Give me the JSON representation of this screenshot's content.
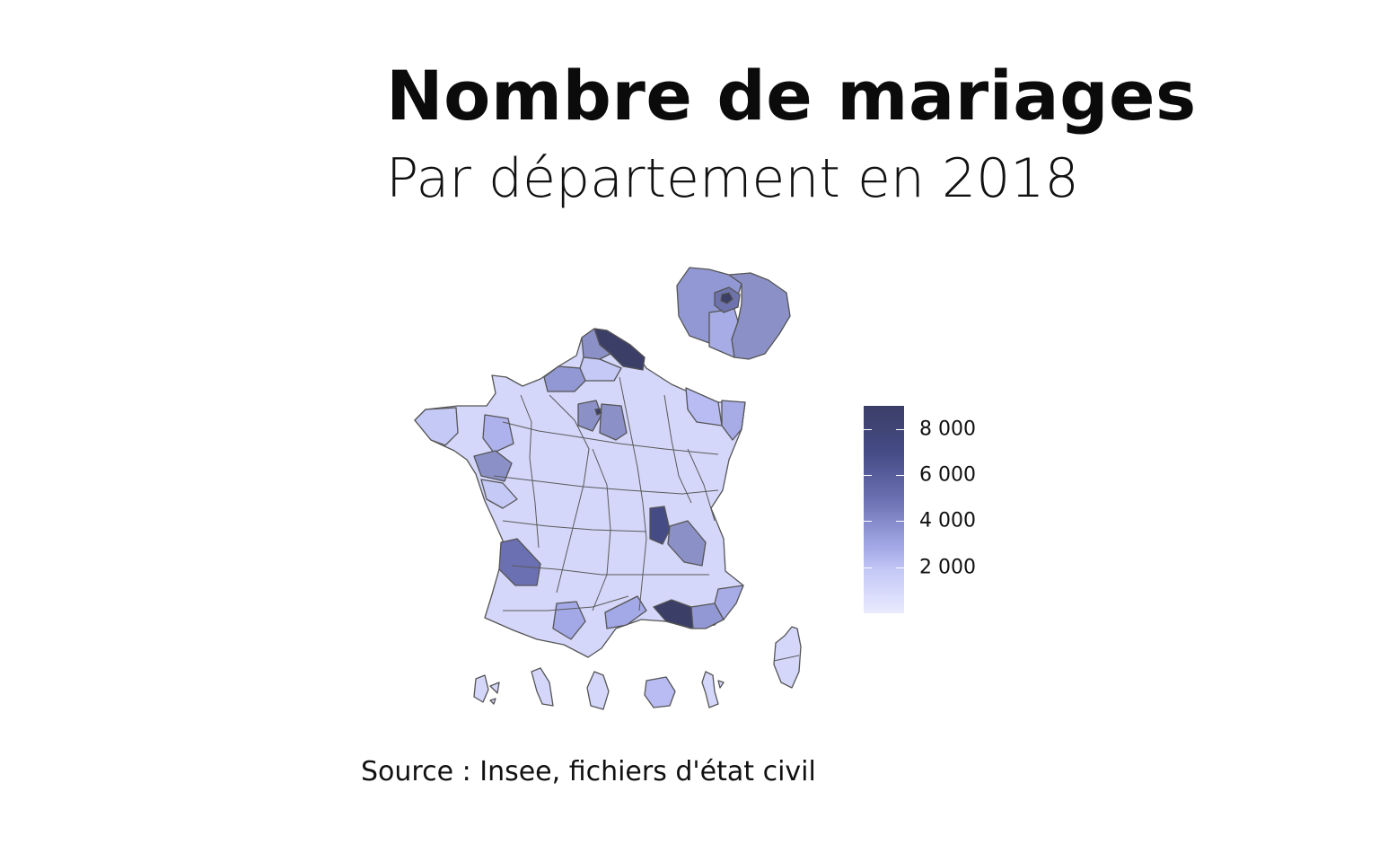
{
  "title": "Nombre de mariages",
  "subtitle": "Par département en 2018",
  "source": "Source : Insee, fichiers d'état civil",
  "legend": {
    "ticks": [
      {
        "value": 8000,
        "label": "8 000"
      },
      {
        "value": 6000,
        "label": "6 000"
      },
      {
        "value": 4000,
        "label": "4 000"
      },
      {
        "value": 2000,
        "label": "2 000"
      }
    ],
    "range": [
      0,
      9000
    ],
    "colors": {
      "low": "#e9ebff",
      "mid": "#a3a8e6",
      "high": "#3b3e67"
    }
  },
  "map": {
    "regions": [
      {
        "name": "nord",
        "value": 8800
      },
      {
        "name": "pas-de-calais",
        "value": 4200
      },
      {
        "name": "somme",
        "value": 1800
      },
      {
        "name": "seine-maritime",
        "value": 3900
      },
      {
        "name": "paris",
        "value": 9000
      },
      {
        "name": "seine-et-marne",
        "value": 4300
      },
      {
        "name": "yvelines",
        "value": 4300
      },
      {
        "name": "gironde",
        "value": 5600
      },
      {
        "name": "rhone",
        "value": 6700
      },
      {
        "name": "isere",
        "value": 4000
      },
      {
        "name": "bouches-du-rhone",
        "value": 7900
      },
      {
        "name": "herault",
        "value": 3400
      },
      {
        "name": "haute-garonne",
        "value": 3600
      },
      {
        "name": "loire-atlantique",
        "value": 4000
      },
      {
        "name": "bas-rhin",
        "value": 3600
      },
      {
        "name": "alpes-maritimes",
        "value": 3600
      },
      {
        "name": "var",
        "value": 3600
      },
      {
        "name": "reunion",
        "value": 2800
      }
    ]
  }
}
